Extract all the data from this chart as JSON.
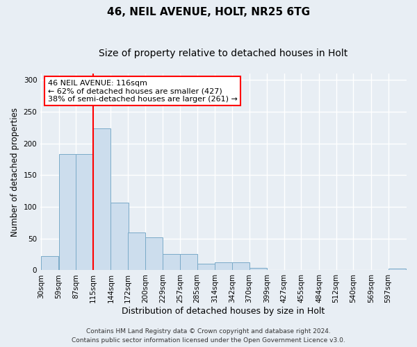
{
  "title1": "46, NEIL AVENUE, HOLT, NR25 6TG",
  "title2": "Size of property relative to detached houses in Holt",
  "xlabel": "Distribution of detached houses by size in Holt",
  "ylabel": "Number of detached properties",
  "footnote": "Contains HM Land Registry data © Crown copyright and database right 2024.\nContains public sector information licensed under the Open Government Licence v3.0.",
  "bin_labels": [
    "30sqm",
    "59sqm",
    "87sqm",
    "115sqm",
    "144sqm",
    "172sqm",
    "200sqm",
    "229sqm",
    "257sqm",
    "285sqm",
    "314sqm",
    "342sqm",
    "370sqm",
    "399sqm",
    "427sqm",
    "455sqm",
    "484sqm",
    "512sqm",
    "540sqm",
    "569sqm",
    "597sqm"
  ],
  "bin_edges": [
    30,
    59,
    87,
    115,
    144,
    172,
    200,
    229,
    257,
    285,
    314,
    342,
    370,
    399,
    427,
    455,
    484,
    512,
    540,
    569,
    597
  ],
  "bar_heights": [
    22,
    183,
    183,
    224,
    107,
    60,
    52,
    26,
    26,
    10,
    12,
    12,
    4,
    1,
    0,
    0,
    0,
    0,
    0,
    0,
    3
  ],
  "bar_color": "#ccdded",
  "bar_edge_color": "#7aaac8",
  "property_line_x": 115,
  "property_line_color": "red",
  "annotation_text": "46 NEIL AVENUE: 116sqm\n← 62% of detached houses are smaller (427)\n38% of semi-detached houses are larger (261) →",
  "annotation_box_color": "white",
  "annotation_box_edge_color": "red",
  "ylim": [
    0,
    310
  ],
  "yticks": [
    0,
    50,
    100,
    150,
    200,
    250,
    300
  ],
  "background_color": "#e8eef4",
  "grid_color": "white",
  "title1_fontsize": 11,
  "title2_fontsize": 10,
  "xlabel_fontsize": 9,
  "ylabel_fontsize": 8.5,
  "annotation_fontsize": 8,
  "tick_fontsize": 7.5,
  "footnote_fontsize": 6.5
}
